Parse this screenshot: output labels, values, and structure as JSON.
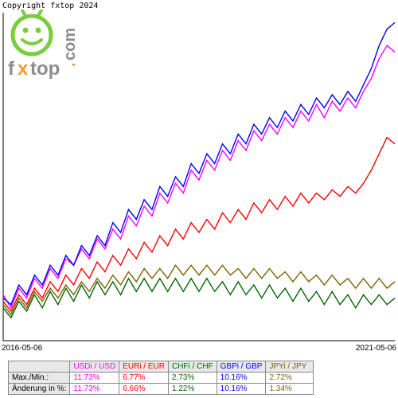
{
  "copyright": "Copyright fxtop 2024",
  "logo": {
    "brand_text_1": "f",
    "brand_text_2": "x",
    "brand_text_3": "top",
    "domain": ".com",
    "face_color": "#7ccc3f",
    "orange": "#f59b2e",
    "text_grey": "#8a8c8d"
  },
  "chart": {
    "type": "line",
    "background": "#ffffff",
    "axis_color": "#000000",
    "xlim": [
      0,
      100
    ],
    "ylim": [
      0,
      100
    ],
    "x_start_label": "2016-05-06",
    "x_end_label": "2021-05-06",
    "series": [
      {
        "name": "USDi / USD",
        "color": "#ff00ff",
        "stroke": 1.4,
        "points": [
          [
            0,
            14
          ],
          [
            2,
            10
          ],
          [
            4,
            16
          ],
          [
            6,
            13
          ],
          [
            8,
            19
          ],
          [
            10,
            16
          ],
          [
            12,
            22
          ],
          [
            14,
            19
          ],
          [
            16,
            25
          ],
          [
            18,
            23
          ],
          [
            20,
            28
          ],
          [
            22,
            25
          ],
          [
            24,
            31
          ],
          [
            26,
            28
          ],
          [
            28,
            34
          ],
          [
            30,
            31
          ],
          [
            32,
            38
          ],
          [
            34,
            35
          ],
          [
            36,
            41
          ],
          [
            38,
            38
          ],
          [
            40,
            45
          ],
          [
            42,
            42
          ],
          [
            44,
            48
          ],
          [
            46,
            45
          ],
          [
            48,
            52
          ],
          [
            50,
            49
          ],
          [
            52,
            55
          ],
          [
            54,
            52
          ],
          [
            56,
            58
          ],
          [
            58,
            55
          ],
          [
            60,
            61
          ],
          [
            62,
            58
          ],
          [
            64,
            64
          ],
          [
            66,
            61
          ],
          [
            68,
            66
          ],
          [
            70,
            63
          ],
          [
            72,
            68
          ],
          [
            74,
            65
          ],
          [
            76,
            70
          ],
          [
            78,
            67
          ],
          [
            80,
            72
          ],
          [
            82,
            68
          ],
          [
            84,
            73
          ],
          [
            86,
            70
          ],
          [
            88,
            74
          ],
          [
            90,
            71
          ],
          [
            92,
            76
          ],
          [
            94,
            80
          ],
          [
            96,
            86
          ],
          [
            98,
            90
          ],
          [
            100,
            88
          ]
        ]
      },
      {
        "name": "EURi / EUR",
        "color": "#ff0000",
        "stroke": 1.4,
        "points": [
          [
            0,
            12
          ],
          [
            2,
            9
          ],
          [
            4,
            14
          ],
          [
            6,
            11
          ],
          [
            8,
            16
          ],
          [
            10,
            13
          ],
          [
            12,
            18
          ],
          [
            14,
            15
          ],
          [
            16,
            20
          ],
          [
            18,
            17
          ],
          [
            20,
            22
          ],
          [
            22,
            19
          ],
          [
            24,
            24
          ],
          [
            26,
            21
          ],
          [
            28,
            26
          ],
          [
            30,
            23
          ],
          [
            32,
            28
          ],
          [
            34,
            25
          ],
          [
            36,
            30
          ],
          [
            38,
            27
          ],
          [
            40,
            32
          ],
          [
            42,
            29
          ],
          [
            44,
            34
          ],
          [
            46,
            31
          ],
          [
            48,
            36
          ],
          [
            50,
            33
          ],
          [
            52,
            37
          ],
          [
            54,
            34
          ],
          [
            56,
            39
          ],
          [
            58,
            36
          ],
          [
            60,
            40
          ],
          [
            62,
            37
          ],
          [
            64,
            42
          ],
          [
            66,
            39
          ],
          [
            68,
            43
          ],
          [
            70,
            40
          ],
          [
            72,
            44
          ],
          [
            74,
            41
          ],
          [
            76,
            45
          ],
          [
            78,
            42
          ],
          [
            80,
            45
          ],
          [
            82,
            43
          ],
          [
            84,
            46
          ],
          [
            86,
            44
          ],
          [
            88,
            47
          ],
          [
            90,
            45
          ],
          [
            92,
            48
          ],
          [
            94,
            52
          ],
          [
            96,
            57
          ],
          [
            98,
            62
          ],
          [
            100,
            60
          ]
        ]
      },
      {
        "name": "CHFi / CHF",
        "color": "#006600",
        "stroke": 1.4,
        "points": [
          [
            0,
            10
          ],
          [
            2,
            7
          ],
          [
            4,
            12
          ],
          [
            6,
            9
          ],
          [
            8,
            14
          ],
          [
            10,
            10
          ],
          [
            12,
            15
          ],
          [
            14,
            11
          ],
          [
            16,
            16
          ],
          [
            18,
            12
          ],
          [
            20,
            17
          ],
          [
            22,
            13
          ],
          [
            24,
            18
          ],
          [
            26,
            14
          ],
          [
            28,
            18
          ],
          [
            30,
            14
          ],
          [
            32,
            19
          ],
          [
            34,
            15
          ],
          [
            36,
            19
          ],
          [
            38,
            15
          ],
          [
            40,
            19
          ],
          [
            42,
            15
          ],
          [
            44,
            19
          ],
          [
            46,
            15
          ],
          [
            48,
            19
          ],
          [
            50,
            15
          ],
          [
            52,
            19
          ],
          [
            54,
            15
          ],
          [
            56,
            18
          ],
          [
            58,
            14
          ],
          [
            60,
            18
          ],
          [
            62,
            14
          ],
          [
            64,
            17
          ],
          [
            66,
            13
          ],
          [
            68,
            17
          ],
          [
            70,
            13
          ],
          [
            72,
            16
          ],
          [
            74,
            12
          ],
          [
            76,
            16
          ],
          [
            78,
            12
          ],
          [
            80,
            15
          ],
          [
            82,
            11
          ],
          [
            84,
            15
          ],
          [
            86,
            11
          ],
          [
            88,
            14
          ],
          [
            90,
            10
          ],
          [
            92,
            14
          ],
          [
            94,
            11
          ],
          [
            96,
            14
          ],
          [
            98,
            11
          ],
          [
            100,
            13
          ]
        ]
      },
      {
        "name": "GBPi / GBP",
        "color": "#0000ff",
        "stroke": 1.4,
        "points": [
          [
            0,
            13
          ],
          [
            2,
            11
          ],
          [
            4,
            17
          ],
          [
            6,
            14
          ],
          [
            8,
            20
          ],
          [
            10,
            17
          ],
          [
            12,
            23
          ],
          [
            14,
            20
          ],
          [
            16,
            26
          ],
          [
            18,
            23
          ],
          [
            20,
            29
          ],
          [
            22,
            26
          ],
          [
            24,
            32
          ],
          [
            26,
            29
          ],
          [
            28,
            36
          ],
          [
            30,
            33
          ],
          [
            32,
            40
          ],
          [
            34,
            37
          ],
          [
            36,
            43
          ],
          [
            38,
            40
          ],
          [
            40,
            47
          ],
          [
            42,
            44
          ],
          [
            44,
            50
          ],
          [
            46,
            47
          ],
          [
            48,
            54
          ],
          [
            50,
            51
          ],
          [
            52,
            57
          ],
          [
            54,
            54
          ],
          [
            56,
            60
          ],
          [
            58,
            57
          ],
          [
            60,
            63
          ],
          [
            62,
            60
          ],
          [
            64,
            66
          ],
          [
            66,
            63
          ],
          [
            68,
            68
          ],
          [
            70,
            65
          ],
          [
            72,
            70
          ],
          [
            74,
            67
          ],
          [
            76,
            72
          ],
          [
            78,
            69
          ],
          [
            80,
            74
          ],
          [
            82,
            71
          ],
          [
            84,
            75
          ],
          [
            86,
            72
          ],
          [
            88,
            76
          ],
          [
            90,
            73
          ],
          [
            92,
            78
          ],
          [
            94,
            83
          ],
          [
            96,
            90
          ],
          [
            98,
            95
          ],
          [
            100,
            97
          ]
        ]
      },
      {
        "name": "JPYi / JPY",
        "color": "#806000",
        "stroke": 1.4,
        "points": [
          [
            0,
            11
          ],
          [
            2,
            8
          ],
          [
            4,
            13
          ],
          [
            6,
            10
          ],
          [
            8,
            15
          ],
          [
            10,
            12
          ],
          [
            12,
            16
          ],
          [
            14,
            13
          ],
          [
            16,
            17
          ],
          [
            18,
            14
          ],
          [
            20,
            18
          ],
          [
            22,
            15
          ],
          [
            24,
            19
          ],
          [
            26,
            16
          ],
          [
            28,
            20
          ],
          [
            30,
            17
          ],
          [
            32,
            21
          ],
          [
            34,
            18
          ],
          [
            36,
            22
          ],
          [
            38,
            19
          ],
          [
            40,
            22
          ],
          [
            42,
            19
          ],
          [
            44,
            23
          ],
          [
            46,
            20
          ],
          [
            48,
            23
          ],
          [
            50,
            20
          ],
          [
            52,
            23
          ],
          [
            54,
            20
          ],
          [
            56,
            23
          ],
          [
            58,
            20
          ],
          [
            60,
            22
          ],
          [
            62,
            19
          ],
          [
            64,
            22
          ],
          [
            66,
            19
          ],
          [
            68,
            22
          ],
          [
            70,
            19
          ],
          [
            72,
            21
          ],
          [
            74,
            18
          ],
          [
            76,
            21
          ],
          [
            78,
            18
          ],
          [
            80,
            20
          ],
          [
            82,
            17
          ],
          [
            84,
            20
          ],
          [
            86,
            17
          ],
          [
            88,
            19
          ],
          [
            90,
            16
          ],
          [
            92,
            19
          ],
          [
            94,
            16
          ],
          [
            96,
            19
          ],
          [
            98,
            16
          ],
          [
            100,
            18
          ]
        ]
      }
    ]
  },
  "table": {
    "header_bg": "#e8e8e8",
    "rows": [
      {
        "label": "",
        "cells": [
          {
            "text": "USDi / USD",
            "color": "#ff00ff"
          },
          {
            "text": "EURi / EUR",
            "color": "#ff0000"
          },
          {
            "text": "CHFi / CHF",
            "color": "#006600"
          },
          {
            "text": "GBPi / GBP",
            "color": "#0000ff"
          },
          {
            "text": "JPYi / JPY",
            "color": "#806000"
          }
        ]
      },
      {
        "label": "Max./Min.:",
        "cells": [
          {
            "text": "11.73%",
            "color": "#ff00ff"
          },
          {
            "text": "6.77%",
            "color": "#ff0000"
          },
          {
            "text": "2.73%",
            "color": "#006600"
          },
          {
            "text": "10.16%",
            "color": "#0000ff"
          },
          {
            "text": "2.72%",
            "color": "#806000"
          }
        ]
      },
      {
        "label": "Änderung in %:",
        "cells": [
          {
            "text": "11.73%",
            "color": "#ff00ff"
          },
          {
            "text": "6.66%",
            "color": "#ff0000"
          },
          {
            "text": "1.22%",
            "color": "#006600"
          },
          {
            "text": "10.16%",
            "color": "#0000ff"
          },
          {
            "text": "1.34%",
            "color": "#806000"
          }
        ]
      }
    ]
  }
}
